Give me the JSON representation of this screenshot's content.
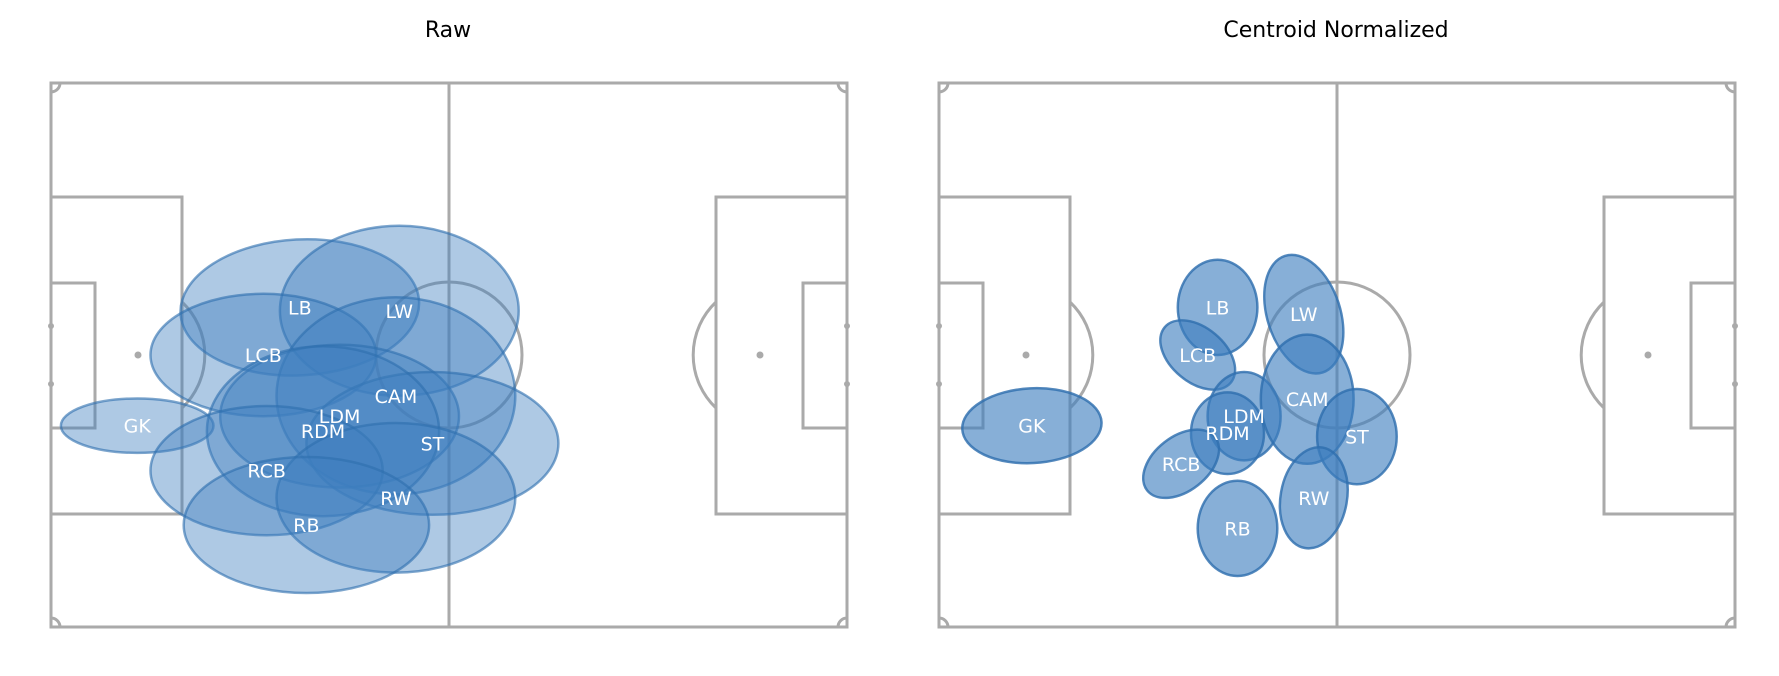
{
  "panels": [
    {
      "title": "Raw",
      "ellipse_alpha": 0.42,
      "positions": [
        {
          "label": "GK",
          "x": 13.0,
          "y": 29.6,
          "rx": 11.5,
          "ry": 4.0,
          "angle": 0
        },
        {
          "label": "LB",
          "x": 37.5,
          "y": 47.0,
          "rx": 18.0,
          "ry": 10.0,
          "angle": 3
        },
        {
          "label": "LW",
          "x": 52.5,
          "y": 46.5,
          "rx": 18.0,
          "ry": 12.5,
          "angle": 0
        },
        {
          "label": "LCB",
          "x": 32.0,
          "y": 40.0,
          "rx": 17.0,
          "ry": 9.0,
          "angle": 0
        },
        {
          "label": "CAM",
          "x": 52.0,
          "y": 34.0,
          "rx": 18.0,
          "ry": 14.5,
          "angle": 0
        },
        {
          "label": "LDM",
          "x": 43.5,
          "y": 31.0,
          "rx": 18.0,
          "ry": 10.5,
          "angle": 0
        },
        {
          "label": "ST",
          "x": 57.5,
          "y": 27.0,
          "rx": 19.0,
          "ry": 10.5,
          "angle": 0
        },
        {
          "label": "RDM",
          "x": 41.0,
          "y": 28.8,
          "rx": 17.5,
          "ry": 12.5,
          "angle": 0
        },
        {
          "label": "RCB",
          "x": 32.5,
          "y": 23.0,
          "rx": 17.5,
          "ry": 9.5,
          "angle": 0
        },
        {
          "label": "RW",
          "x": 52.0,
          "y": 19.0,
          "rx": 18.0,
          "ry": 11.0,
          "angle": 0
        },
        {
          "label": "RB",
          "x": 38.5,
          "y": 15.0,
          "rx": 18.5,
          "ry": 10.0,
          "angle": 0
        }
      ]
    },
    {
      "title": "Centroid Normalized",
      "ellipse_alpha": 0.62,
      "positions": [
        {
          "label": "GK",
          "x": 14.0,
          "y": 29.6,
          "rx": 10.5,
          "ry": 5.5,
          "angle": 3
        },
        {
          "label": "LB",
          "x": 42.0,
          "y": 47.0,
          "rx": 6.0,
          "ry": 7.0,
          "angle": 0
        },
        {
          "label": "LW",
          "x": 55.0,
          "y": 46.0,
          "rx": 5.5,
          "ry": 9.0,
          "angle": 18
        },
        {
          "label": "LCB",
          "x": 39.0,
          "y": 40.0,
          "rx": 6.5,
          "ry": 4.0,
          "angle": -40
        },
        {
          "label": "LDM",
          "x": 46.0,
          "y": 31.0,
          "rx": 5.5,
          "ry": 6.5,
          "angle": 0
        },
        {
          "label": "CAM",
          "x": 55.5,
          "y": 33.5,
          "rx": 7.0,
          "ry": 9.5,
          "angle": 0
        },
        {
          "label": "ST",
          "x": 63.0,
          "y": 28.0,
          "rx": 6.0,
          "ry": 7.0,
          "angle": 0
        },
        {
          "label": "RDM",
          "x": 43.5,
          "y": 28.5,
          "rx": 5.5,
          "ry": 6.0,
          "angle": 0
        },
        {
          "label": "RCB",
          "x": 36.5,
          "y": 24.0,
          "rx": 6.5,
          "ry": 4.0,
          "angle": 38
        },
        {
          "label": "RW",
          "x": 56.5,
          "y": 19.0,
          "rx": 5.0,
          "ry": 7.5,
          "angle": -10
        },
        {
          "label": "RB",
          "x": 45.0,
          "y": 14.5,
          "rx": 6.0,
          "ry": 7.0,
          "angle": 0
        }
      ]
    }
  ],
  "colors": {
    "ellipse_fill": "#3d7ebf",
    "ellipse_stroke": "#2f6fae",
    "pitch_line": "#aaaaaa",
    "label_text": "#ffffff",
    "background": "#ffffff"
  }
}
